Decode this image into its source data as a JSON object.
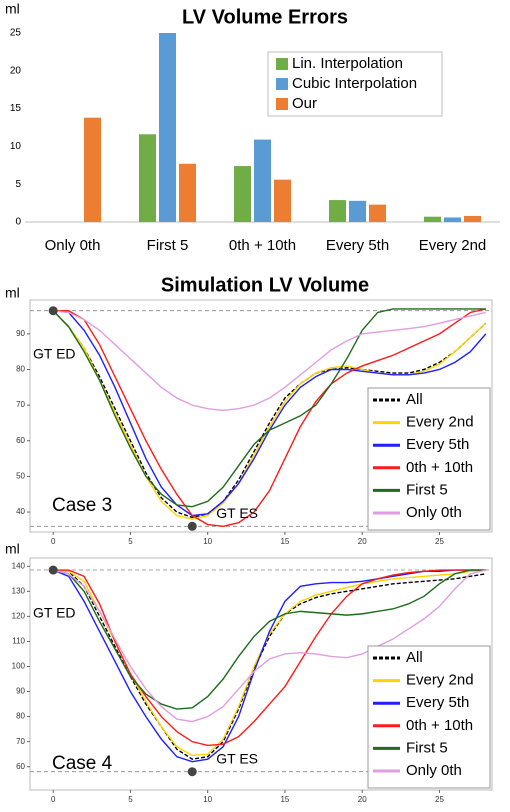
{
  "chart_data": [
    {
      "type": "bar",
      "title": "LV Volume Errors",
      "ylabel": "ml",
      "categories": [
        "Only 0th",
        "First 5",
        "0th + 10th",
        "Every 5th",
        "Every 2nd"
      ],
      "series": [
        {
          "name": "Lin. Interpolation",
          "color": "#70ad47",
          "values": [
            null,
            11.6,
            7.4,
            2.9,
            0.7
          ]
        },
        {
          "name": "Cubic Interpolation",
          "color": "#5b9bd5",
          "values": [
            null,
            25,
            10.9,
            2.8,
            0.6
          ]
        },
        {
          "name": "Our",
          "color": "#ed7d31",
          "values": [
            13.8,
            7.7,
            5.6,
            2.3,
            0.8
          ]
        }
      ],
      "ylim": [
        0,
        25
      ],
      "yticks": [
        0,
        5,
        10,
        15,
        20,
        25
      ],
      "grid": false,
      "legend": "upper right"
    },
    {
      "type": "line",
      "title": "Simulation LV Volume",
      "ylabel": "ml",
      "case_label": "Case 3",
      "x": [
        0,
        1,
        2,
        3,
        4,
        5,
        6,
        7,
        8,
        9,
        10,
        11,
        12,
        13,
        14,
        15,
        16,
        17,
        18,
        19,
        20,
        21,
        22,
        23,
        24,
        25,
        26,
        27,
        28
      ],
      "series": [
        {
          "name": "All",
          "color": "#000000",
          "dashed": true,
          "values": [
            96.5,
            92,
            86,
            78,
            69,
            60,
            51,
            44,
            40,
            38.5,
            39.5,
            43,
            49,
            57,
            65,
            72,
            76,
            79,
            80,
            80.5,
            80,
            79.5,
            79,
            79,
            80,
            82,
            85,
            89,
            93
          ]
        },
        {
          "name": "Every 2nd",
          "color": "#ffd400",
          "values": [
            96.5,
            92,
            86,
            77,
            68,
            59,
            50,
            43,
            39,
            38,
            39,
            42.5,
            48,
            56,
            64,
            71,
            76,
            79,
            80.5,
            81,
            80,
            79,
            78.5,
            78.5,
            79.5,
            81.5,
            85,
            89,
            93
          ]
        },
        {
          "name": "Every 5th",
          "color": "#1f1fff",
          "values": [
            96.5,
            96,
            91,
            84,
            75,
            65,
            55,
            47,
            42,
            39,
            39.5,
            43,
            48,
            55,
            63,
            70,
            75,
            78,
            80,
            80,
            79.5,
            79,
            78.5,
            78.5,
            79,
            80,
            82,
            85,
            90
          ]
        },
        {
          "name": "0th + 10th",
          "color": "#ff1a1a",
          "values": [
            96.5,
            96.5,
            94,
            87,
            78,
            69,
            60,
            52,
            45,
            39,
            36.5,
            36,
            37,
            40,
            46,
            55,
            64,
            71,
            76,
            79,
            81,
            82.5,
            84,
            86,
            88,
            90,
            93,
            96,
            97
          ]
        },
        {
          "name": "First 5",
          "color": "#1e6b1e",
          "values": [
            96.5,
            92,
            85,
            77,
            67,
            58,
            50,
            45,
            42,
            41.5,
            43,
            47,
            53,
            59,
            63,
            65,
            67,
            70,
            76,
            83,
            91,
            96,
            97,
            97,
            97,
            97,
            97,
            97,
            97
          ]
        },
        {
          "name": "Only 0th",
          "color": "#e09ee0",
          "values": [
            96.5,
            96,
            94,
            91,
            87,
            83,
            79,
            75,
            72,
            70,
            69,
            68.5,
            69,
            70,
            72,
            75,
            78.5,
            82,
            85.5,
            88,
            90,
            90.5,
            91,
            91.5,
            92,
            93,
            94,
            95,
            96
          ]
        }
      ],
      "gt_ed": {
        "label": "GT ED",
        "x": 0,
        "y": 96.5
      },
      "gt_es": {
        "label": "GT ES",
        "x": 9,
        "y": 36
      },
      "xlim": [
        -1.5,
        28.4
      ],
      "xticks": [
        0,
        5,
        10,
        15,
        20,
        25
      ],
      "ylim": [
        34.4,
        99.5
      ],
      "yticks": [
        40,
        50,
        60,
        70,
        80,
        90
      ],
      "grid": false,
      "legend": "lower right"
    },
    {
      "type": "line",
      "ylabel": "ml",
      "case_label": "Case 4",
      "x": [
        0,
        1,
        2,
        3,
        4,
        5,
        6,
        7,
        8,
        9,
        10,
        11,
        12,
        13,
        14,
        15,
        16,
        17,
        18,
        19,
        20,
        21,
        22,
        23,
        24,
        25,
        26,
        27,
        28
      ],
      "series": [
        {
          "name": "All",
          "color": "#000000",
          "dashed": true,
          "values": [
            138.5,
            138,
            132,
            120,
            108,
            96,
            85,
            76,
            67,
            63,
            64,
            70,
            83,
            99,
            112,
            121,
            125,
            127.5,
            129,
            130,
            131,
            132,
            133,
            133.5,
            134,
            134.5,
            135,
            136,
            137
          ]
        },
        {
          "name": "Every 2nd",
          "color": "#ffd400",
          "values": [
            138.5,
            138,
            134,
            122,
            110,
            97,
            86,
            76,
            68,
            64.5,
            65,
            71,
            84,
            100,
            113,
            121,
            126,
            128.5,
            130,
            131.5,
            133,
            134,
            135,
            135.5,
            136,
            136.5,
            137,
            138,
            138.5
          ]
        },
        {
          "name": "Every 5th",
          "color": "#1f1fff",
          "values": [
            138.5,
            136,
            126,
            114,
            102,
            90,
            80,
            71,
            64,
            62,
            63,
            68,
            80,
            98,
            114,
            126,
            132,
            133,
            133.5,
            133.5,
            134,
            135,
            136,
            137,
            138,
            138,
            138.5,
            138.5,
            138.5
          ]
        },
        {
          "name": "0th + 10th",
          "color": "#ff1a1a",
          "values": [
            138.5,
            138.5,
            136,
            125,
            110,
            97,
            88,
            80,
            74,
            70,
            68.5,
            69,
            72,
            78,
            85,
            92,
            102,
            112,
            121,
            128,
            133,
            135,
            136.5,
            137.5,
            138,
            138.5,
            138.5,
            138.5,
            138.5
          ]
        },
        {
          "name": "First 5",
          "color": "#1e6b1e",
          "values": [
            138.5,
            137,
            130,
            118,
            107,
            96,
            89,
            85,
            83,
            83.5,
            88,
            95,
            104,
            112,
            118,
            121,
            122,
            121.5,
            121,
            120.5,
            121,
            122,
            123,
            125,
            128,
            133,
            137,
            138.5,
            138.5
          ]
        },
        {
          "name": "Only 0th",
          "color": "#e09ee0",
          "values": [
            138.5,
            137,
            132,
            122,
            111,
            100,
            91,
            84,
            79,
            78,
            80,
            84,
            91,
            98,
            103,
            105,
            105.5,
            105,
            104,
            103.5,
            105,
            108,
            111,
            115,
            119,
            124,
            131,
            137,
            138.5
          ]
        }
      ],
      "gt_ed": {
        "label": "GT ED",
        "x": 0,
        "y": 138.5
      },
      "gt_es": {
        "label": "GT ES",
        "x": 9,
        "y": 58
      },
      "xlim": [
        -1.5,
        28.4
      ],
      "xticks": [
        0,
        5,
        10,
        15,
        20,
        25
      ],
      "ylim": [
        50.7,
        143.3
      ],
      "yticks": [
        60,
        70,
        80,
        90,
        100,
        110,
        120,
        130,
        140
      ],
      "grid": false,
      "legend": "lower right"
    }
  ]
}
